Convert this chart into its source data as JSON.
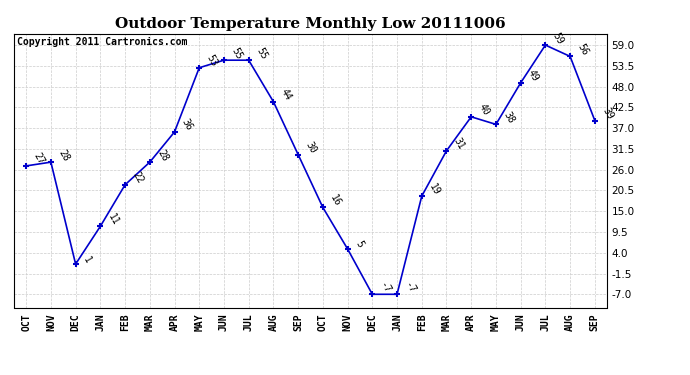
{
  "title": "Outdoor Temperature Monthly Low 20111006",
  "copyright": "Copyright 2011 Cartronics.com",
  "x_labels": [
    "OCT",
    "NOV",
    "DEC",
    "JAN",
    "FEB",
    "MAR",
    "APR",
    "MAY",
    "JUN",
    "JUL",
    "AUG",
    "SEP",
    "OCT",
    "NOV",
    "DEC",
    "JAN",
    "FEB",
    "MAR",
    "APR",
    "MAY",
    "JUN",
    "JUL",
    "AUG",
    "SEP"
  ],
  "y_values": [
    27,
    28,
    1,
    11,
    22,
    28,
    36,
    53,
    55,
    55,
    44,
    30,
    16,
    5,
    -7,
    -7,
    19,
    31,
    40,
    38,
    49,
    59,
    56,
    39
  ],
  "line_color": "#0000cc",
  "marker_color": "#0000cc",
  "bg_color": "#ffffff",
  "grid_color": "#cccccc",
  "title_fontsize": 11,
  "copyright_fontsize": 7,
  "label_fontsize": 7,
  "xtick_fontsize": 7,
  "ytick_fontsize": 7.5,
  "yticks": [
    -7.0,
    -1.5,
    4.0,
    9.5,
    15.0,
    20.5,
    26.0,
    31.5,
    37.0,
    42.5,
    48.0,
    53.5,
    59.0
  ],
  "ylim": [
    -10.5,
    62
  ],
  "xlim": [
    -0.5,
    23.5
  ]
}
